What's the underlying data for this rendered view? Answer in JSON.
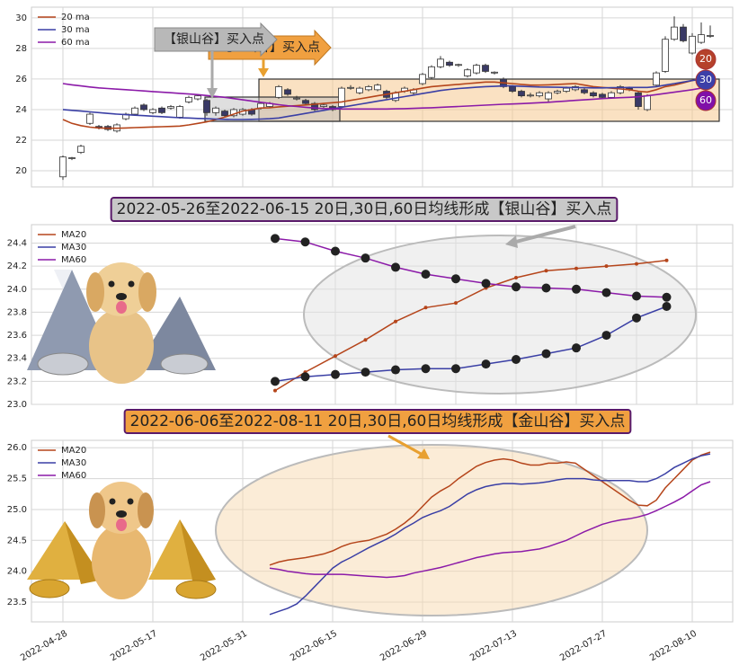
{
  "chart_data": [
    {
      "type": "candlestick",
      "annotations": [
        "【金山谷】买入点",
        "【银山谷】买入点"
      ],
      "badges": [
        {
          "label": "20",
          "color": "#b5412a"
        },
        {
          "label": "30",
          "color": "#3c3fa8"
        },
        {
          "label": "60",
          "color": "#8010a8"
        }
      ],
      "ylim": [
        18.94,
        30.7
      ],
      "yticks": [
        20,
        22,
        24,
        26,
        28,
        30
      ],
      "grid": true,
      "legend": "upper left",
      "rise_color": "#ffffff",
      "fall_color": "#3a3a66",
      "open": [
        19.6,
        20.8,
        21.2,
        23.1,
        22.9,
        22.9,
        22.6,
        23.4,
        23.7,
        24.3,
        23.8,
        24.1,
        24.1,
        23.5,
        24.5,
        24.7,
        24.6,
        23.8,
        23.9,
        23.6,
        23.7,
        24.0,
        24.1,
        24.2,
        24.8,
        25.3,
        24.7,
        24.6,
        24.4,
        24.2,
        24.2,
        24.2,
        25.4,
        25.1,
        25.3,
        25.3,
        25.2,
        24.6,
        25.2,
        25.1,
        25.7,
        26.1,
        26.8,
        27.1,
        26.9,
        26.2,
        26.4,
        26.9,
        26.4,
        26.0,
        25.5,
        25.2,
        24.9,
        24.9,
        24.7,
        25.1,
        25.2,
        25.3,
        25.3,
        25.1,
        25.0,
        24.8,
        25.1,
        25.4,
        25.1,
        24.0,
        25.6,
        26.5,
        28.6,
        29.4,
        27.7,
        28.4,
        28.8
      ],
      "close": [
        20.9,
        20.85,
        21.6,
        23.7,
        22.8,
        22.7,
        23.0,
        23.7,
        24.1,
        24.0,
        24.0,
        23.8,
        24.2,
        24.2,
        24.8,
        24.9,
        23.8,
        24.1,
        23.6,
        24.0,
        24.0,
        23.7,
        24.4,
        24.4,
        25.5,
        25.0,
        24.75,
        24.4,
        24.0,
        24.3,
        24.0,
        25.4,
        25.45,
        25.4,
        25.5,
        25.6,
        24.8,
        25.1,
        25.4,
        25.3,
        26.3,
        26.8,
        27.3,
        26.9,
        26.95,
        26.6,
        26.9,
        26.5,
        26.45,
        25.5,
        25.2,
        24.9,
        24.95,
        25.1,
        25.1,
        25.2,
        25.4,
        25.5,
        25.1,
        24.9,
        24.8,
        25.1,
        25.5,
        25.3,
        24.2,
        24.9,
        26.4,
        28.6,
        29.4,
        28.5,
        28.8,
        28.9,
        28.85
      ],
      "high": [
        21.0,
        20.9,
        21.7,
        23.8,
        23.0,
        23.0,
        23.1,
        23.8,
        24.2,
        24.4,
        24.1,
        24.2,
        24.3,
        24.3,
        24.9,
        25.0,
        24.7,
        24.2,
        24.0,
        24.1,
        24.1,
        24.1,
        24.5,
        24.5,
        25.6,
        25.4,
        24.9,
        24.7,
        24.5,
        24.4,
        24.3,
        25.5,
        25.6,
        25.5,
        25.6,
        25.7,
        25.3,
        25.2,
        25.5,
        25.4,
        26.4,
        26.9,
        27.5,
        27.2,
        27.0,
        26.7,
        27.0,
        27.0,
        26.5,
        26.1,
        25.6,
        25.3,
        25.1,
        25.2,
        25.2,
        25.3,
        25.5,
        25.6,
        25.4,
        25.2,
        25.1,
        25.2,
        25.6,
        25.5,
        25.2,
        25.0,
        26.5,
        28.8,
        30.1,
        29.6,
        29.0,
        29.7,
        29.5
      ],
      "low": [
        19.4,
        20.7,
        21.1,
        23.0,
        22.7,
        22.6,
        22.5,
        23.3,
        23.6,
        23.9,
        23.7,
        23.7,
        24.0,
        23.4,
        24.4,
        24.6,
        23.6,
        23.6,
        23.5,
        23.5,
        23.6,
        23.6,
        24.0,
        24.1,
        24.7,
        24.9,
        24.6,
        24.3,
        23.9,
        24.1,
        23.9,
        24.1,
        25.3,
        25.0,
        25.2,
        25.2,
        24.7,
        24.5,
        25.1,
        25.0,
        25.6,
        26.0,
        26.7,
        26.8,
        26.8,
        26.1,
        26.3,
        26.4,
        26.3,
        25.4,
        25.1,
        24.8,
        24.8,
        24.8,
        24.5,
        25.0,
        25.1,
        25.2,
        25.0,
        24.8,
        24.7,
        24.7,
        25.0,
        25.2,
        24.0,
        23.9,
        25.5,
        26.4,
        28.5,
        28.4,
        27.6,
        28.3,
        28.7
      ],
      "series": [
        {
          "name": "20 ma",
          "color": "#b5451b",
          "values": [
            23.35,
            23.1,
            22.95,
            22.85,
            22.8,
            22.78,
            22.78,
            22.8,
            22.82,
            22.84,
            22.86,
            22.88,
            22.9,
            22.92,
            23.0,
            23.1,
            23.2,
            23.35,
            23.5,
            23.7,
            23.9,
            24.0,
            24.1,
            24.12,
            24.18,
            24.22,
            24.26,
            24.3,
            24.35,
            24.4,
            24.45,
            24.5,
            24.6,
            24.7,
            24.8,
            24.9,
            25.0,
            25.1,
            25.2,
            25.3,
            25.4,
            25.5,
            25.55,
            25.6,
            25.65,
            25.7,
            25.75,
            25.8,
            25.8,
            25.75,
            25.7,
            25.65,
            25.6,
            25.6,
            25.62,
            25.65,
            25.68,
            25.7,
            25.6,
            25.5,
            25.45,
            25.4,
            25.35,
            25.3,
            25.2,
            25.15,
            25.3,
            25.5,
            25.6,
            25.75,
            25.9,
            26.05,
            26.2
          ]
        },
        {
          "name": "30 ma",
          "color": "#3a3fa5",
          "values": [
            24.0,
            23.95,
            23.9,
            23.85,
            23.8,
            23.75,
            23.7,
            23.67,
            23.63,
            23.6,
            23.57,
            23.54,
            23.5,
            23.47,
            23.45,
            23.42,
            23.4,
            23.38,
            23.36,
            23.35,
            23.35,
            23.36,
            23.38,
            23.4,
            23.45,
            23.55,
            23.65,
            23.75,
            23.85,
            23.95,
            24.05,
            24.15,
            24.25,
            24.35,
            24.45,
            24.55,
            24.65,
            24.75,
            24.85,
            24.95,
            25.05,
            25.15,
            25.25,
            25.32,
            25.38,
            25.42,
            25.46,
            25.5,
            25.52,
            25.55,
            25.55,
            25.52,
            25.5,
            25.48,
            25.47,
            25.46,
            25.45,
            25.44,
            25.43,
            25.42,
            25.42,
            25.43,
            25.44,
            25.45,
            25.45,
            25.45,
            25.5,
            25.6,
            25.7,
            25.8,
            25.9,
            25.98,
            26.05
          ]
        },
        {
          "name": "60 ma",
          "color": "#8b1aa8",
          "values": [
            25.7,
            25.62,
            25.55,
            25.48,
            25.42,
            25.38,
            25.34,
            25.3,
            25.26,
            25.22,
            25.18,
            25.14,
            25.1,
            25.06,
            25.02,
            24.98,
            24.92,
            24.86,
            24.8,
            24.72,
            24.64,
            24.56,
            24.48,
            24.4,
            24.32,
            24.25,
            24.2,
            24.15,
            24.1,
            24.07,
            24.05,
            24.04,
            24.04,
            24.04,
            24.04,
            24.04,
            24.04,
            24.05,
            24.06,
            24.08,
            24.1,
            24.12,
            24.15,
            24.18,
            24.2,
            24.23,
            24.26,
            24.29,
            24.32,
            24.35,
            24.37,
            24.39,
            24.42,
            24.45,
            24.48,
            24.52,
            24.56,
            24.6,
            24.64,
            24.68,
            24.72,
            24.75,
            24.78,
            24.8,
            24.84,
            24.9,
            24.98,
            25.06,
            25.14,
            25.22,
            25.3,
            25.4,
            25.5
          ]
        }
      ]
    },
    {
      "type": "line",
      "title": "2022-05-26至2022-06-15 20日,30日,60日均线形成【银山谷】买入点",
      "ylim": [
        23.0,
        24.56
      ],
      "yticks": [
        {
          "value": 23.0,
          "label": "23.0"
        },
        23.2,
        23.4,
        23.6,
        23.8,
        {
          "value": 24.0,
          "label": "24.0"
        },
        24.2,
        24.4
      ],
      "grid": true,
      "legend": "upper left",
      "series": [
        {
          "name": "MA20",
          "color": "#b5451b",
          "values": [
            23.12,
            23.28,
            23.42,
            23.56,
            23.72,
            23.84,
            23.88,
            24.01,
            24.1,
            24.16,
            24.18,
            24.2,
            24.22,
            24.25
          ]
        },
        {
          "name": "MA30",
          "color": "#3a3fa5",
          "values": [
            23.2,
            23.24,
            23.26,
            23.28,
            23.3,
            23.31,
            23.31,
            23.35,
            23.39,
            23.44,
            23.49,
            23.6,
            23.75,
            23.85
          ]
        },
        {
          "name": "MA60",
          "color": "#8b1aa8",
          "values": [
            24.44,
            24.41,
            24.33,
            24.27,
            24.19,
            24.13,
            24.09,
            24.05,
            24.02,
            24.01,
            24.0,
            23.97,
            23.94,
            23.93
          ]
        }
      ]
    },
    {
      "type": "line",
      "title": "2022-06-06至2022-08-11 20日,30日,60日均线形成【金山谷】买入点",
      "ylim": [
        23.18,
        26.12
      ],
      "yticks": [
        23.5,
        {
          "value": 24.0,
          "label": "24.0"
        },
        24.5,
        {
          "value": 25.0,
          "label": "25.0"
        },
        25.5,
        {
          "value": 26.0,
          "label": "26.0"
        }
      ],
      "grid": true,
      "legend": "upper left",
      "categories": [
        "2022-04-28",
        null,
        null,
        null,
        null,
        null,
        null,
        null,
        null,
        null,
        "2022-05-17",
        null,
        null,
        null,
        null,
        null,
        null,
        null,
        null,
        null,
        "2022-05-31",
        null,
        null,
        null,
        null,
        null,
        null,
        null,
        null,
        null,
        "2022-06-15",
        null,
        null,
        null,
        null,
        null,
        null,
        null,
        null,
        null,
        "2022-06-29",
        null,
        null,
        null,
        null,
        null,
        null,
        null,
        null,
        null,
        "2022-07-13",
        null,
        null,
        null,
        null,
        null,
        null,
        null,
        null,
        null,
        "2022-07-27",
        null,
        null,
        null,
        null,
        null,
        null,
        null,
        null,
        null,
        "2022-08-10",
        null,
        null
      ],
      "series": [
        {
          "name": "MA20",
          "color": "#b5451b",
          "values": [
            null,
            null,
            null,
            null,
            null,
            null,
            null,
            null,
            null,
            null,
            null,
            null,
            null,
            null,
            null,
            null,
            null,
            null,
            null,
            null,
            null,
            null,
            null,
            24.1,
            24.15,
            24.18,
            24.2,
            24.22,
            24.25,
            24.28,
            24.33,
            24.4,
            24.45,
            24.48,
            24.5,
            24.55,
            24.6,
            24.68,
            24.78,
            24.9,
            25.05,
            25.2,
            25.3,
            25.38,
            25.5,
            25.6,
            25.7,
            25.76,
            25.8,
            25.82,
            25.8,
            25.75,
            25.72,
            25.72,
            25.75,
            25.75,
            25.77,
            25.75,
            25.65,
            25.55,
            25.45,
            25.35,
            25.25,
            25.15,
            25.07,
            25.06,
            25.15,
            25.35,
            25.5,
            25.65,
            25.8,
            25.88,
            25.93
          ]
        },
        {
          "name": "MA30",
          "color": "#3a3fa5",
          "values": [
            null,
            null,
            null,
            null,
            null,
            null,
            null,
            null,
            null,
            null,
            null,
            null,
            null,
            null,
            null,
            null,
            null,
            null,
            null,
            null,
            null,
            null,
            null,
            23.3,
            23.35,
            23.4,
            23.47,
            23.6,
            23.75,
            23.9,
            24.05,
            24.15,
            24.22,
            24.3,
            24.38,
            24.45,
            24.52,
            24.6,
            24.7,
            24.78,
            24.87,
            24.93,
            24.98,
            25.05,
            25.15,
            25.25,
            25.32,
            25.37,
            25.4,
            25.42,
            25.42,
            25.41,
            25.42,
            25.43,
            25.45,
            25.48,
            25.5,
            25.5,
            25.5,
            25.48,
            25.47,
            25.47,
            25.47,
            25.47,
            25.45,
            25.45,
            25.5,
            25.58,
            25.68,
            25.75,
            25.82,
            25.87,
            25.9
          ]
        },
        {
          "name": "MA60",
          "color": "#8b1aa8",
          "values": [
            null,
            null,
            null,
            null,
            null,
            null,
            null,
            null,
            null,
            null,
            null,
            null,
            null,
            null,
            null,
            null,
            null,
            null,
            null,
            null,
            null,
            null,
            null,
            24.05,
            24.03,
            24.0,
            23.98,
            23.96,
            23.95,
            23.95,
            23.95,
            23.95,
            23.94,
            23.93,
            23.92,
            23.91,
            23.9,
            23.91,
            23.93,
            23.97,
            24.0,
            24.03,
            24.06,
            24.1,
            24.14,
            24.18,
            24.22,
            24.25,
            24.28,
            24.3,
            24.31,
            24.32,
            24.34,
            24.36,
            24.4,
            24.45,
            24.5,
            24.57,
            24.64,
            24.7,
            24.76,
            24.8,
            24.83,
            24.85,
            24.88,
            24.92,
            24.98,
            25.05,
            25.12,
            25.2,
            25.3,
            25.4,
            25.45
          ]
        }
      ]
    }
  ]
}
